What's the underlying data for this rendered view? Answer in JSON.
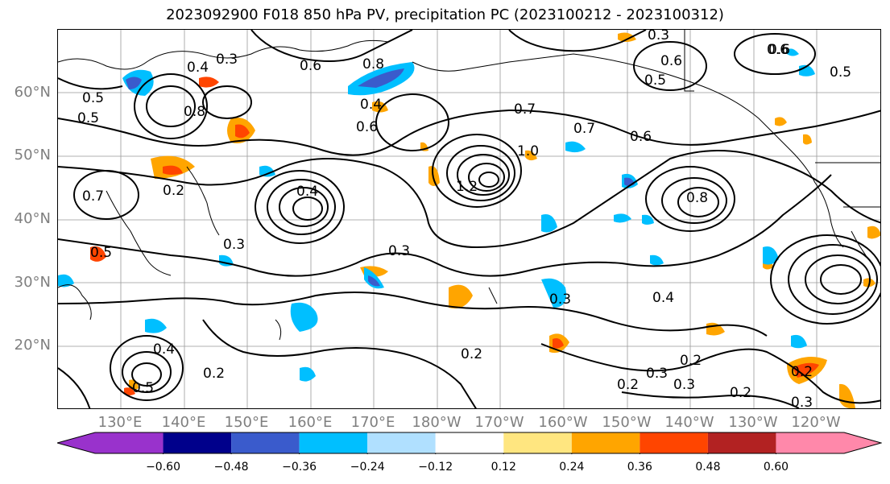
{
  "title": "2023092900 F018 850 hPa PV, precipitation PC (2023100212 - 2023100312)",
  "lat_labels": [
    "60°N",
    "50°N",
    "40°N",
    "30°N",
    "20°N"
  ],
  "lon_labels": [
    "130°E",
    "140°E",
    "150°E",
    "160°E",
    "170°E",
    "180°W",
    "170°W",
    "160°W",
    "150°W",
    "140°W",
    "130°W",
    "120°W"
  ],
  "colorbar": {
    "colors": [
      "#9932cc",
      "#00008b",
      "#3a5bcc",
      "#00bfff",
      "#b0e0ff",
      "#ffffff",
      "#ffe680",
      "#ffa500",
      "#ff4500",
      "#b22222",
      "#ff88aa"
    ],
    "ticks": [
      "−0.60",
      "−0.48",
      "−0.36",
      "−0.24",
      "−0.12",
      "0.12",
      "0.24",
      "0.36",
      "0.48",
      "0.60"
    ]
  },
  "contour_labels": [
    "0.3",
    "0.4",
    "0.6",
    "0.8",
    "0.5",
    "0.4",
    "0.6",
    "0.8",
    "0.5",
    "0.7",
    "0.7",
    "0.6",
    "1.0",
    "1.2",
    "0.6",
    "0.8",
    "0.6",
    "0.7",
    "0.5",
    "0.3",
    "0.4",
    "0.2",
    "0.3",
    "0.2",
    "0.5",
    "0.4",
    "0.3",
    "0.2",
    "0.3",
    "0.2",
    "0.3",
    "0.2",
    "0.3",
    "0.2",
    "0.3",
    "0.2",
    "0.5",
    "0.6",
    "0.4",
    "0.5"
  ]
}
